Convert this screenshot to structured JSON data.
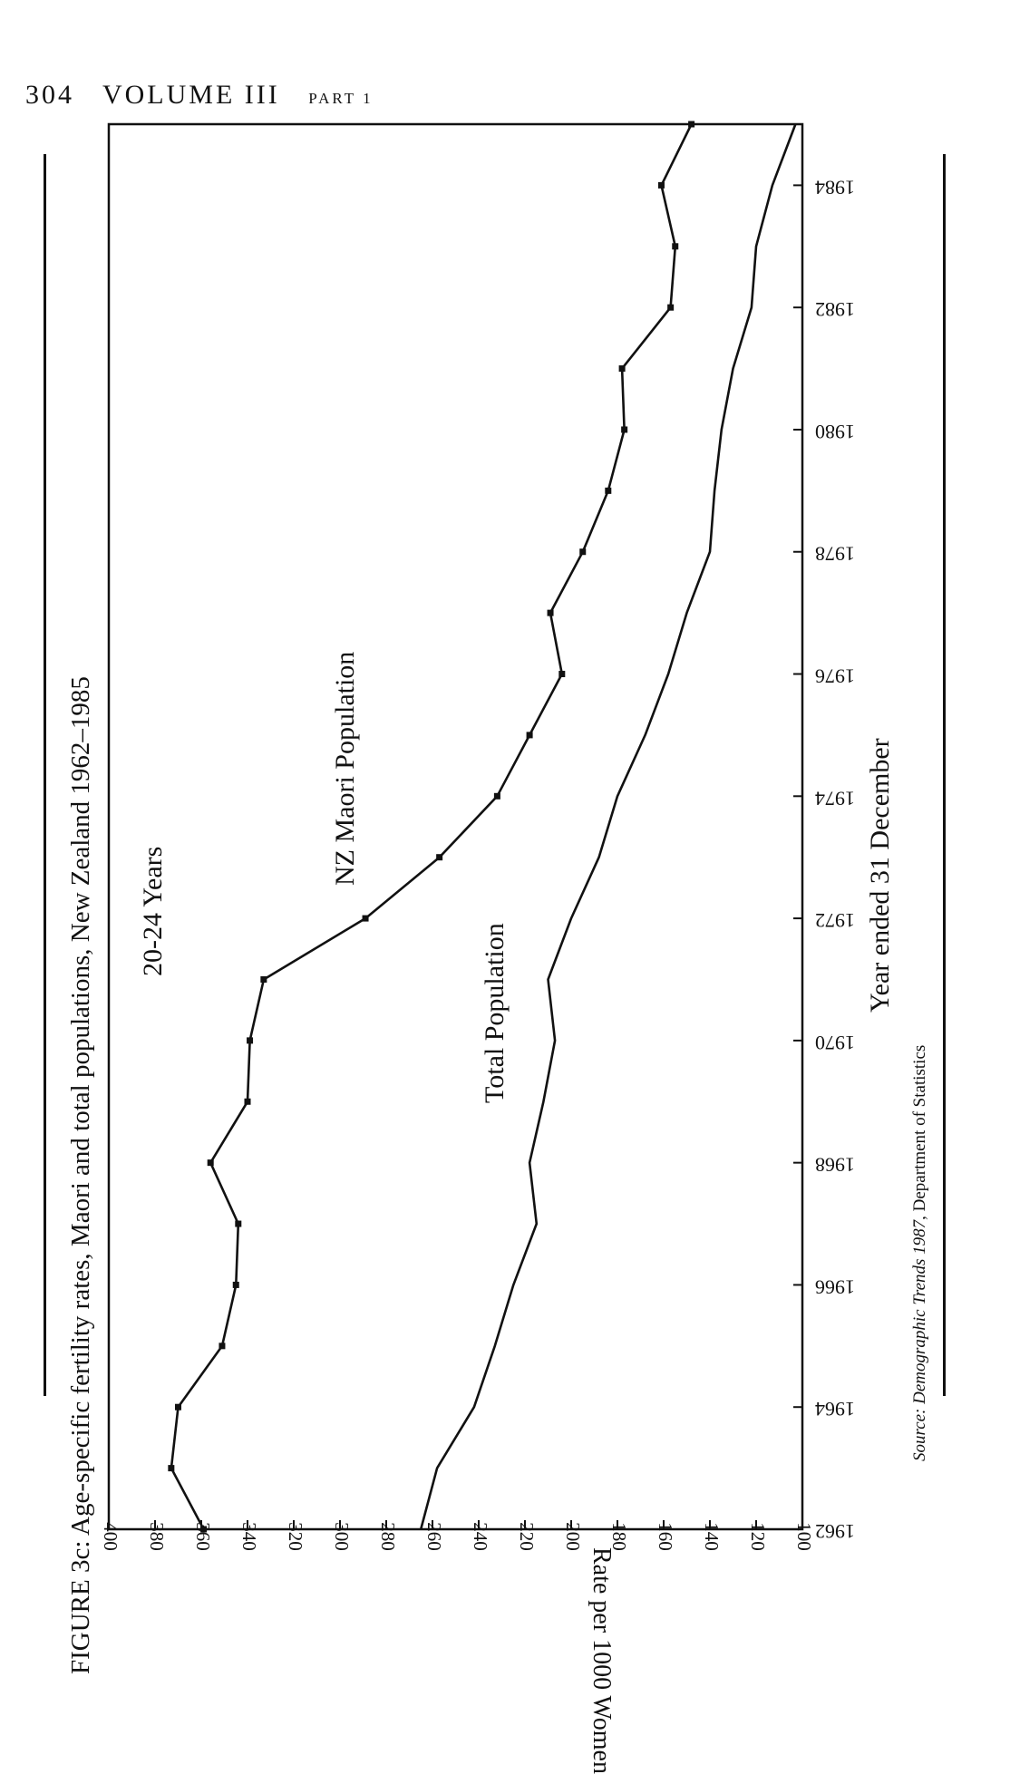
{
  "page_header": {
    "page_number": "304",
    "volume": "VOLUME III",
    "part": "PART 1"
  },
  "figure_title": "FIGURE 3c: Age-specific fertility rates, Maori and total populations, New Zealand 1962–1985",
  "source": {
    "italic": "Source: Demographic Trends 1987",
    "rest": ", Department of Statistics"
  },
  "chart_data": {
    "type": "line",
    "xlabel": "Year ended 31 December",
    "ylabel": "Rate per 1000 Women",
    "xlim": [
      1962,
      1985
    ],
    "ylim": [
      100,
      400
    ],
    "x_ticks": [
      1962,
      1964,
      1966,
      1968,
      1970,
      1972,
      1974,
      1976,
      1978,
      1980,
      1982,
      1984
    ],
    "y_ticks": [
      100,
      120,
      140,
      160,
      180,
      200,
      220,
      240,
      260,
      280,
      300,
      320,
      340,
      360,
      380,
      400
    ],
    "annotations": [
      "20-24 Years",
      "NZ Maori Population",
      "Total Population"
    ],
    "grid": false,
    "x": [
      1962,
      1963,
      1964,
      1965,
      1966,
      1967,
      1968,
      1969,
      1970,
      1971,
      1972,
      1973,
      1974,
      1975,
      1976,
      1977,
      1978,
      1979,
      1980,
      1981,
      1982,
      1983,
      1984,
      1985
    ],
    "series": [
      {
        "name": "NZ Maori Population",
        "markers": true,
        "values": [
          359,
          373,
          370,
          351,
          345,
          344,
          356,
          340,
          339,
          333,
          289,
          257,
          232,
          218,
          204,
          209,
          195,
          184,
          177,
          178,
          157,
          155,
          161,
          148
        ]
      },
      {
        "name": "Total Population",
        "markers": false,
        "values": [
          265,
          258,
          242,
          233,
          225,
          215,
          218,
          212,
          207,
          210,
          200,
          188,
          180,
          168,
          158,
          150,
          140,
          138,
          135,
          130,
          122,
          120,
          113,
          103
        ]
      }
    ],
    "colors": {
      "line": "#111111"
    }
  }
}
